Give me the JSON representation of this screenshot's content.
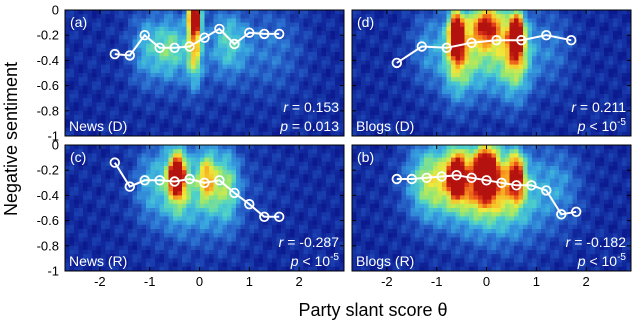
{
  "figure": {
    "xlabel": "Party slant score θ",
    "ylabel": "Negative sentiment",
    "colors": {
      "line": "#ffffff",
      "marker_fill": "none",
      "annotation_text": "#ffffff",
      "axis_text": "#000000"
    },
    "colormap": [
      "#0b1a8f",
      "#1a3fb0",
      "#2b6fd0",
      "#39a8e0",
      "#4fd3c8",
      "#9ee86a",
      "#f2e83a",
      "#f7a21e",
      "#e8431a",
      "#b4120e"
    ]
  },
  "chart_data": [
    {
      "type": "line",
      "panel_label": "(a)",
      "source_label": "News (D)",
      "stat_r": "= 0.153",
      "stat_p": "= 0.013",
      "x": [
        -1.7,
        -1.4,
        -1.1,
        -0.8,
        -0.5,
        -0.2,
        0.1,
        0.4,
        0.7,
        1.0,
        1.3,
        1.6
      ],
      "y": [
        -0.35,
        -0.36,
        -0.2,
        -0.3,
        -0.3,
        -0.29,
        -0.22,
        -0.15,
        -0.27,
        -0.18,
        -0.19,
        -0.19
      ],
      "xlim": [
        -2.7,
        2.9
      ],
      "ylim": [
        -1,
        0
      ],
      "xticks": [
        "-2",
        "-1",
        "0",
        "1",
        "2"
      ],
      "xtick_values": [
        -2,
        -1,
        0,
        1,
        2
      ],
      "yticks": [
        "0",
        "-0.2",
        "-0.4",
        "-0.6",
        "-0.8",
        "-1"
      ],
      "ytick_values": [
        0,
        -0.2,
        -0.4,
        -0.6,
        -0.8,
        -1
      ],
      "show_xticks": false,
      "show_yticks": true,
      "heat_hotspots": [
        {
          "x": -0.1,
          "y": -0.05,
          "w": 0.12,
          "h": 0.12,
          "v": 1.0
        },
        {
          "x": -0.1,
          "y": -0.28,
          "w": 0.15,
          "h": 0.3,
          "v": 0.55
        },
        {
          "x": -0.6,
          "y": -0.3,
          "w": 0.35,
          "h": 0.25,
          "v": 0.35
        },
        {
          "x": 0.6,
          "y": -0.25,
          "w": 0.35,
          "h": 0.25,
          "v": 0.3
        },
        {
          "x": -1.1,
          "y": -0.3,
          "w": 0.3,
          "h": 0.3,
          "v": 0.22
        },
        {
          "x": 1.5,
          "y": -0.3,
          "w": 0.6,
          "h": 0.35,
          "v": 0.15
        }
      ]
    },
    {
      "type": "line",
      "panel_label": "(d)",
      "source_label": "Blogs (D)",
      "stat_r": "= 0.211",
      "stat_p": "< 10",
      "stat_p_exp": "-5",
      "x": [
        -1.8,
        -1.3,
        -0.8,
        -0.3,
        0.2,
        0.7,
        1.2,
        1.7
      ],
      "y": [
        -0.42,
        -0.29,
        -0.3,
        -0.26,
        -0.24,
        -0.24,
        -0.2,
        -0.24
      ],
      "xlim": [
        -2.7,
        2.9
      ],
      "ylim": [
        -1,
        0
      ],
      "xticks": [
        "-2",
        "-1",
        "0",
        "1",
        "2"
      ],
      "xtick_values": [
        -2,
        -1,
        0,
        1,
        2
      ],
      "yticks": [
        "0",
        "-0.2",
        "-0.4",
        "-0.6",
        "-0.8",
        "-1"
      ],
      "ytick_values": [
        0,
        -0.2,
        -0.4,
        -0.6,
        -0.8,
        -1
      ],
      "show_xticks": false,
      "show_yticks": false,
      "heat_hotspots": [
        {
          "x": -0.6,
          "y": -0.2,
          "w": 0.13,
          "h": 0.16,
          "v": 1.0
        },
        {
          "x": 0.6,
          "y": -0.2,
          "w": 0.13,
          "h": 0.16,
          "v": 0.95
        },
        {
          "x": 0.0,
          "y": -0.12,
          "w": 0.3,
          "h": 0.15,
          "v": 0.65
        },
        {
          "x": -0.6,
          "y": -0.35,
          "w": 0.3,
          "h": 0.35,
          "v": 0.45
        },
        {
          "x": 0.6,
          "y": -0.35,
          "w": 0.3,
          "h": 0.35,
          "v": 0.45
        },
        {
          "x": 0.0,
          "y": -0.3,
          "w": 0.6,
          "h": 0.35,
          "v": 0.35
        },
        {
          "x": -1.2,
          "y": -0.3,
          "w": 0.3,
          "h": 0.3,
          "v": 0.18
        },
        {
          "x": 1.3,
          "y": -0.3,
          "w": 0.4,
          "h": 0.3,
          "v": 0.15
        }
      ]
    },
    {
      "type": "line",
      "panel_label": "(c)",
      "source_label": "News (R)",
      "stat_r": "= -0.287",
      "stat_p": "< 10",
      "stat_p_exp": "-5",
      "x": [
        -1.7,
        -1.4,
        -1.1,
        -0.8,
        -0.5,
        -0.2,
        0.1,
        0.4,
        0.7,
        1.0,
        1.3,
        1.6
      ],
      "y": [
        -0.14,
        -0.33,
        -0.28,
        -0.28,
        -0.29,
        -0.27,
        -0.3,
        -0.28,
        -0.38,
        -0.47,
        -0.57,
        -0.57
      ],
      "xlim": [
        -2.7,
        2.9
      ],
      "ylim": [
        -1,
        0
      ],
      "xticks": [
        "-2",
        "-1",
        "0",
        "1",
        "2"
      ],
      "xtick_values": [
        -2,
        -1,
        0,
        1,
        2
      ],
      "yticks": [
        "0",
        "-0.2",
        "-0.4",
        "-0.6",
        "-0.8",
        "-1"
      ],
      "ytick_values": [
        0,
        -0.2,
        -0.4,
        -0.6,
        -0.8,
        -1
      ],
      "show_xticks": true,
      "show_yticks": true,
      "heat_hotspots": [
        {
          "x": -0.45,
          "y": -0.25,
          "w": 0.13,
          "h": 0.13,
          "v": 1.0
        },
        {
          "x": -0.45,
          "y": -0.25,
          "w": 0.3,
          "h": 0.3,
          "v": 0.5
        },
        {
          "x": 0.15,
          "y": -0.25,
          "w": 0.2,
          "h": 0.22,
          "v": 0.55
        },
        {
          "x": 0.55,
          "y": -0.3,
          "w": 0.25,
          "h": 0.3,
          "v": 0.35
        },
        {
          "x": -1.0,
          "y": -0.3,
          "w": 0.3,
          "h": 0.3,
          "v": 0.22
        },
        {
          "x": 0.0,
          "y": -0.55,
          "w": 0.8,
          "h": 0.3,
          "v": 0.15
        }
      ]
    },
    {
      "type": "line",
      "panel_label": "(b)",
      "source_label": "Blogs (R)",
      "stat_r": "= -0.182",
      "stat_p": "< 10",
      "stat_p_exp": "-5",
      "x": [
        -1.8,
        -1.5,
        -1.2,
        -0.9,
        -0.6,
        -0.3,
        0.0,
        0.3,
        0.6,
        0.9,
        1.2,
        1.5,
        1.8
      ],
      "y": [
        -0.27,
        -0.27,
        -0.26,
        -0.25,
        -0.24,
        -0.26,
        -0.28,
        -0.3,
        -0.32,
        -0.32,
        -0.36,
        -0.55,
        -0.53
      ],
      "xlim": [
        -2.7,
        2.9
      ],
      "ylim": [
        -1,
        0
      ],
      "xticks": [
        "-2",
        "-1",
        "0",
        "1",
        "2"
      ],
      "xtick_values": [
        -2,
        -1,
        0,
        1,
        2
      ],
      "yticks": [
        "0",
        "-0.2",
        "-0.4",
        "-0.6",
        "-0.8",
        "-1"
      ],
      "ytick_values": [
        0,
        -0.2,
        -0.4,
        -0.6,
        -0.8,
        -1
      ],
      "show_xticks": true,
      "show_yticks": false,
      "heat_hotspots": [
        {
          "x": -0.6,
          "y": -0.25,
          "w": 0.15,
          "h": 0.15,
          "v": 1.0
        },
        {
          "x": 0.0,
          "y": -0.22,
          "w": 0.2,
          "h": 0.18,
          "v": 0.95
        },
        {
          "x": 0.6,
          "y": -0.25,
          "w": 0.15,
          "h": 0.18,
          "v": 0.7
        },
        {
          "x": -0.3,
          "y": -0.25,
          "w": 0.9,
          "h": 0.3,
          "v": 0.5
        },
        {
          "x": -1.2,
          "y": -0.3,
          "w": 0.4,
          "h": 0.3,
          "v": 0.3
        },
        {
          "x": 0.3,
          "y": -0.45,
          "w": 1.0,
          "h": 0.35,
          "v": 0.3
        },
        {
          "x": 1.5,
          "y": -0.3,
          "w": 0.4,
          "h": 0.3,
          "v": 0.15
        }
      ]
    }
  ]
}
